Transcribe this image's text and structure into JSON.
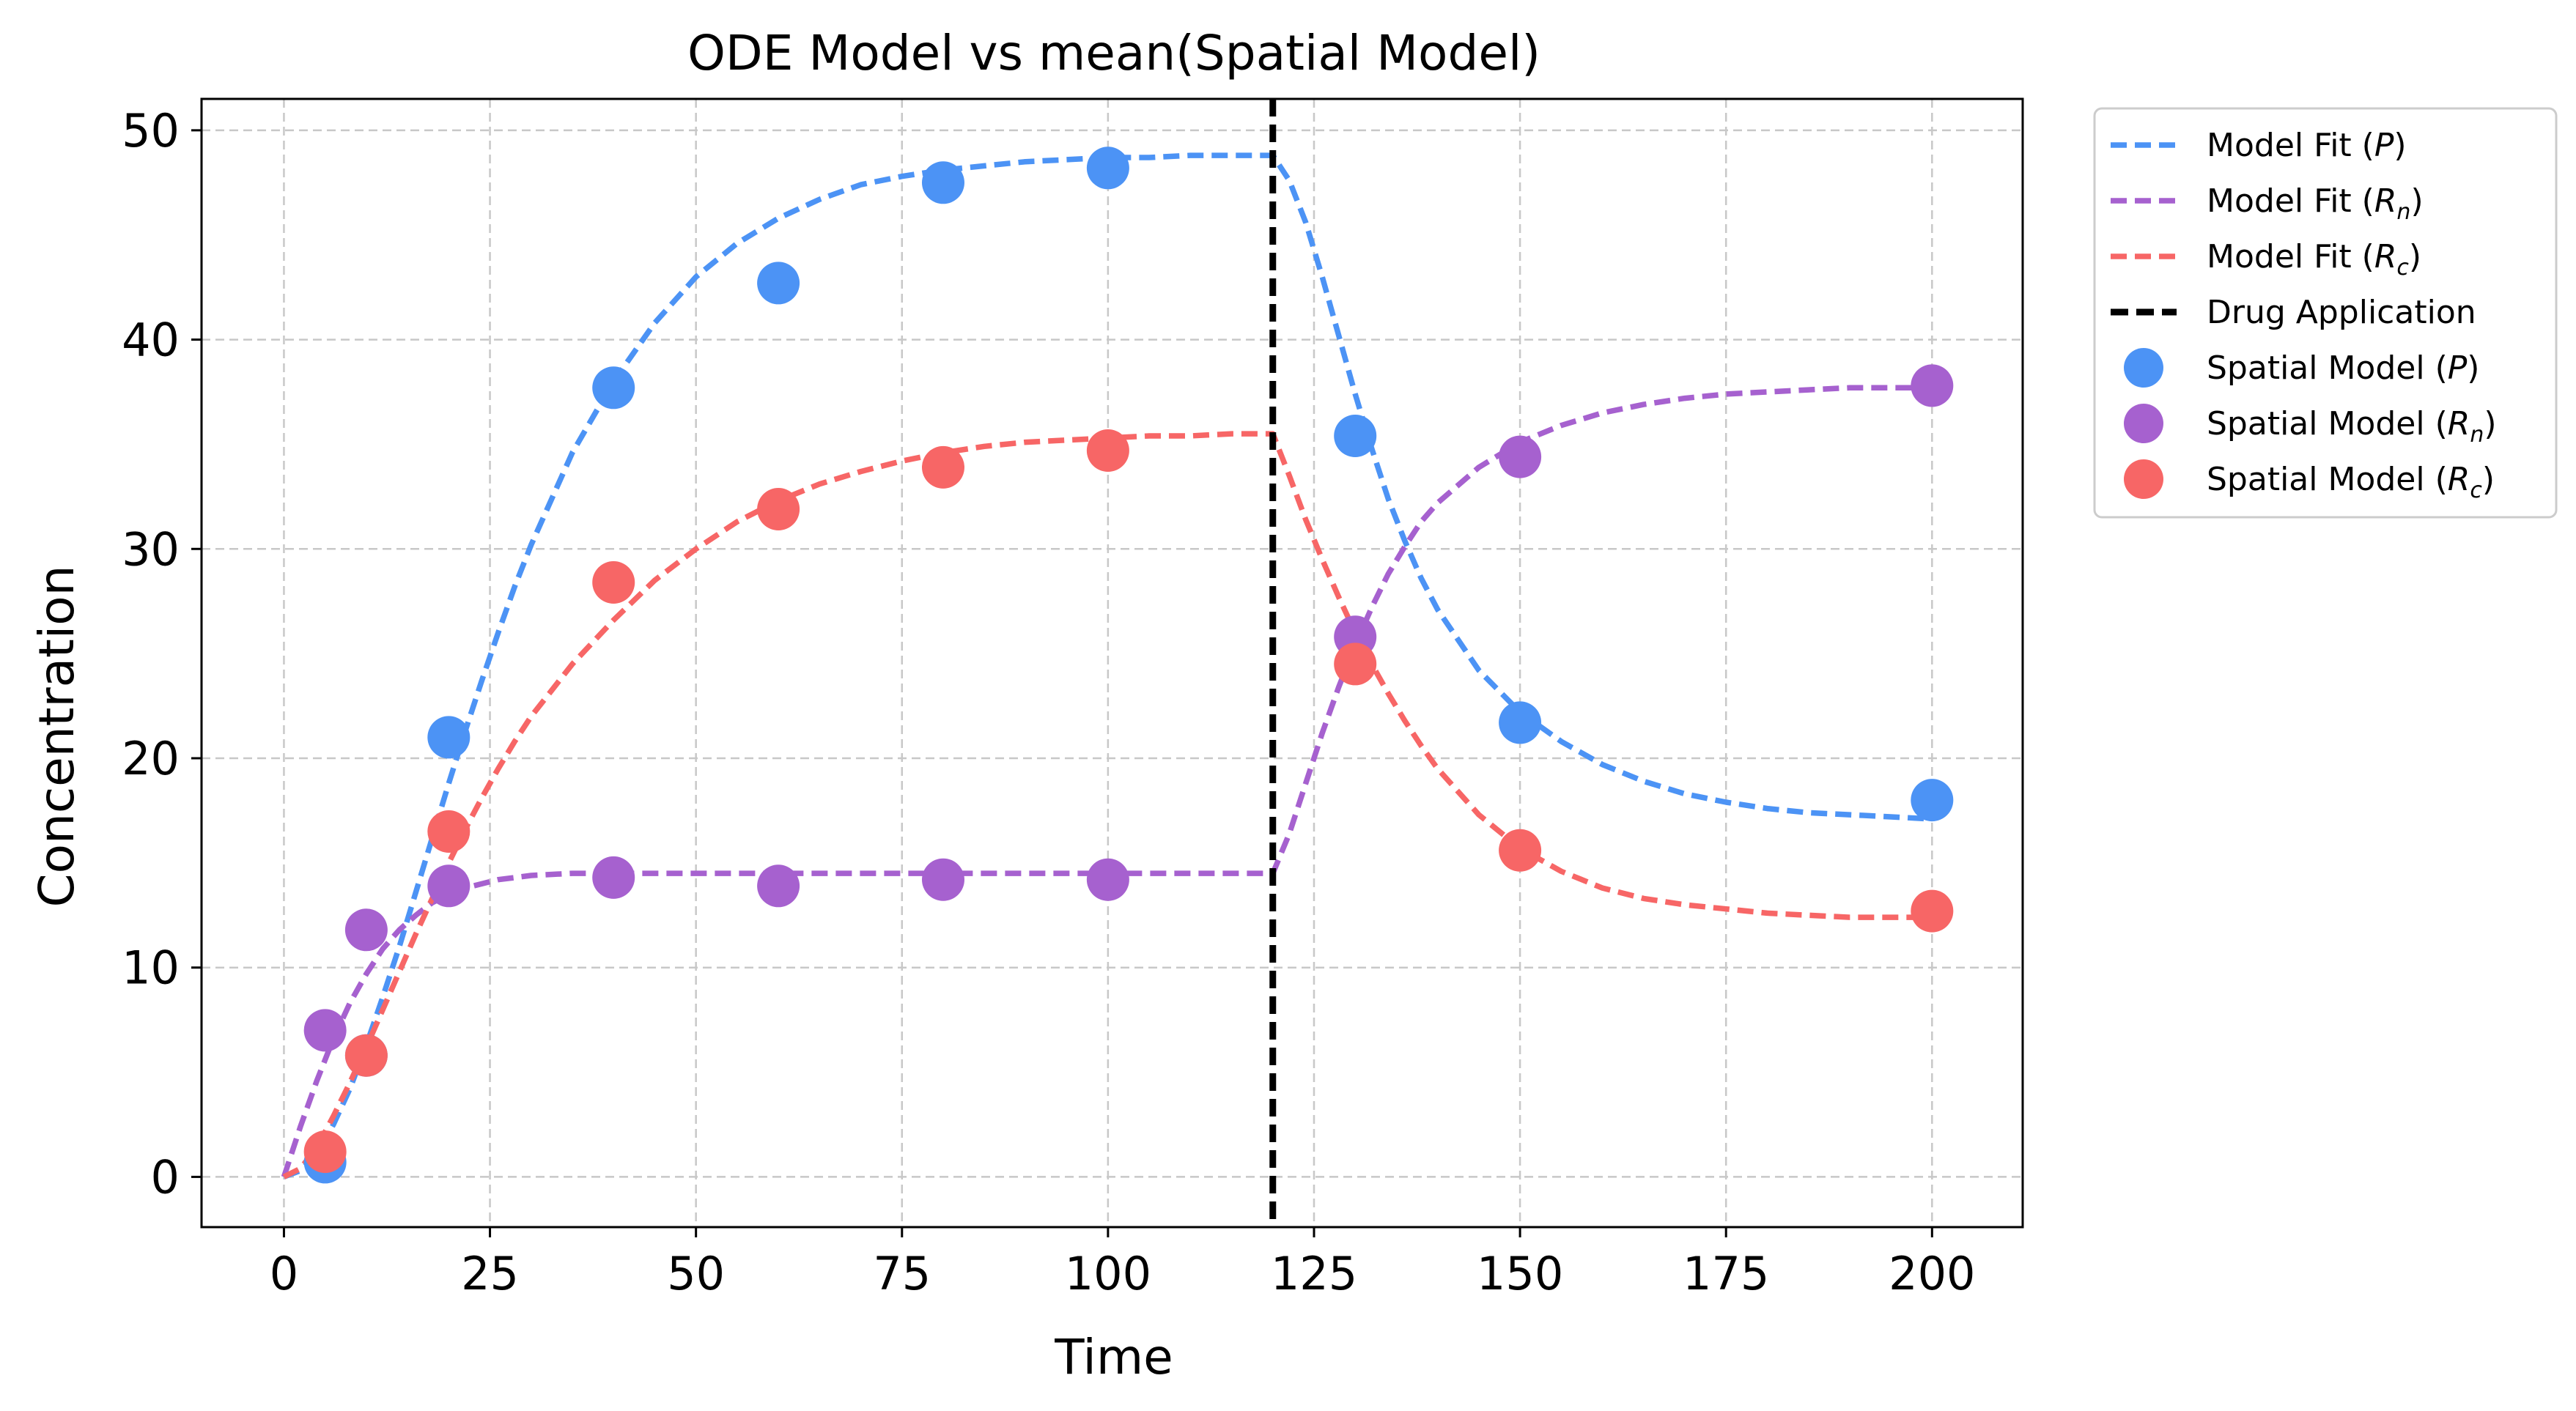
{
  "chart_data": {
    "type": "line",
    "title": "ODE Model vs mean(Spatial Model)",
    "xlabel": "Time",
    "ylabel": "Concentration",
    "xlim": [
      -10,
      211
    ],
    "ylim": [
      -2.4,
      51.5
    ],
    "xticks": [
      0,
      25,
      50,
      75,
      100,
      125,
      150,
      175,
      200
    ],
    "yticks": [
      0,
      10,
      20,
      30,
      40,
      50
    ],
    "xtick_labels": [
      "0",
      "25",
      "50",
      "75",
      "100",
      "125",
      "150",
      "175",
      "200"
    ],
    "ytick_labels": [
      "0",
      "10",
      "20",
      "30",
      "40",
      "50"
    ],
    "grid": true,
    "legend_position": "outside upper right",
    "drug_application_time": 120,
    "fit_x": [
      0,
      2,
      4,
      6,
      8,
      10,
      12,
      14,
      16,
      18,
      20,
      22,
      24,
      26,
      28,
      30,
      35,
      40,
      45,
      50,
      55,
      60,
      65,
      70,
      75,
      80,
      85,
      90,
      95,
      100,
      105,
      110,
      115,
      120,
      122,
      124,
      126,
      128,
      130,
      132,
      134,
      136,
      138,
      140,
      145,
      150,
      155,
      160,
      165,
      170,
      175,
      180,
      185,
      190,
      195,
      200
    ],
    "series": [
      {
        "name": "Model Fit (P)",
        "kind": "fit",
        "color": "#4C93F5",
        "values": [
          0,
          0.3,
          1.1,
          2.5,
          4.2,
          6.3,
          8.6,
          11.0,
          13.6,
          16.2,
          18.8,
          21.3,
          23.7,
          26.0,
          28.2,
          30.2,
          34.6,
          38.0,
          40.8,
          43.0,
          44.6,
          45.8,
          46.7,
          47.4,
          47.8,
          48.1,
          48.3,
          48.5,
          48.6,
          48.7,
          48.7,
          48.8,
          48.8,
          48.8,
          47.6,
          45.6,
          43.0,
          40.2,
          37.4,
          34.8,
          32.4,
          30.4,
          28.6,
          27.1,
          24.2,
          22.2,
          20.8,
          19.7,
          18.9,
          18.3,
          17.9,
          17.6,
          17.4,
          17.3,
          17.2,
          17.1
        ]
      },
      {
        "name": "Model Fit (Rn)",
        "kind": "fit",
        "color": "#A661CF",
        "values": [
          0,
          2.4,
          4.6,
          6.6,
          8.3,
          9.7,
          10.9,
          11.8,
          12.5,
          13.1,
          13.5,
          13.8,
          14.0,
          14.2,
          14.3,
          14.4,
          14.5,
          14.5,
          14.5,
          14.5,
          14.5,
          14.5,
          14.5,
          14.5,
          14.5,
          14.5,
          14.5,
          14.5,
          14.5,
          14.5,
          14.5,
          14.5,
          14.5,
          14.5,
          16.4,
          18.8,
          21.2,
          23.4,
          25.4,
          27.2,
          28.8,
          30.1,
          31.3,
          32.2,
          33.9,
          35.1,
          35.9,
          36.5,
          36.9,
          37.2,
          37.4,
          37.5,
          37.6,
          37.7,
          37.7,
          37.7
        ]
      },
      {
        "name": "Model Fit (Rc)",
        "kind": "fit",
        "color": "#F76666",
        "values": [
          0,
          0.4,
          1.4,
          2.9,
          4.5,
          6.2,
          8.0,
          9.8,
          11.6,
          13.3,
          15.0,
          16.6,
          18.1,
          19.5,
          20.8,
          22.0,
          24.5,
          26.6,
          28.5,
          30.0,
          31.3,
          32.3,
          33.1,
          33.7,
          34.2,
          34.6,
          34.9,
          35.1,
          35.2,
          35.3,
          35.4,
          35.4,
          35.5,
          35.5,
          33.5,
          31.4,
          29.5,
          27.7,
          26.0,
          24.5,
          23.1,
          21.8,
          20.6,
          19.5,
          17.3,
          15.7,
          14.6,
          13.8,
          13.3,
          13.0,
          12.8,
          12.6,
          12.5,
          12.4,
          12.4,
          12.4
        ]
      },
      {
        "name": "Spatial Model (P)",
        "kind": "points",
        "color": "#4C93F5",
        "x": [
          5,
          10,
          20,
          40,
          60,
          80,
          100,
          130,
          150,
          200
        ],
        "values": [
          0.7,
          5.8,
          21.0,
          37.7,
          42.7,
          47.5,
          48.2,
          35.4,
          21.7,
          18.0
        ]
      },
      {
        "name": "Spatial Model (Rn)",
        "kind": "points",
        "color": "#A661CF",
        "x": [
          5,
          10,
          20,
          40,
          60,
          80,
          100,
          130,
          150,
          200
        ],
        "values": [
          7.0,
          11.8,
          13.9,
          14.3,
          13.9,
          14.2,
          14.2,
          25.8,
          34.4,
          37.8
        ]
      },
      {
        "name": "Spatial Model (Rc)",
        "kind": "points",
        "color": "#F76666",
        "x": [
          5,
          10,
          20,
          40,
          60,
          80,
          100,
          130,
          150,
          200
        ],
        "values": [
          1.2,
          5.8,
          16.5,
          28.4,
          31.9,
          33.9,
          34.7,
          24.5,
          15.6,
          12.7
        ]
      }
    ],
    "legend": [
      {
        "kind": "line",
        "color": "#4C93F5",
        "text": "Model Fit (",
        "var": "P",
        "sub": "",
        "suffix": ")"
      },
      {
        "kind": "line",
        "color": "#A661CF",
        "text": "Model Fit (",
        "var": "R",
        "sub": "n",
        "suffix": ")"
      },
      {
        "kind": "line",
        "color": "#F76666",
        "text": "Model Fit (",
        "var": "R",
        "sub": "c",
        "suffix": ")"
      },
      {
        "kind": "vline",
        "color": "#000000",
        "text": "Drug Application",
        "var": "",
        "sub": "",
        "suffix": ""
      },
      {
        "kind": "point",
        "color": "#4C93F5",
        "text": "Spatial Model (",
        "var": "P",
        "sub": "",
        "suffix": ")"
      },
      {
        "kind": "point",
        "color": "#A661CF",
        "text": "Spatial Model (",
        "var": "R",
        "sub": "n",
        "suffix": ")"
      },
      {
        "kind": "point",
        "color": "#F76666",
        "text": "Spatial Model (",
        "var": "R",
        "sub": "c",
        "suffix": ")"
      }
    ]
  }
}
